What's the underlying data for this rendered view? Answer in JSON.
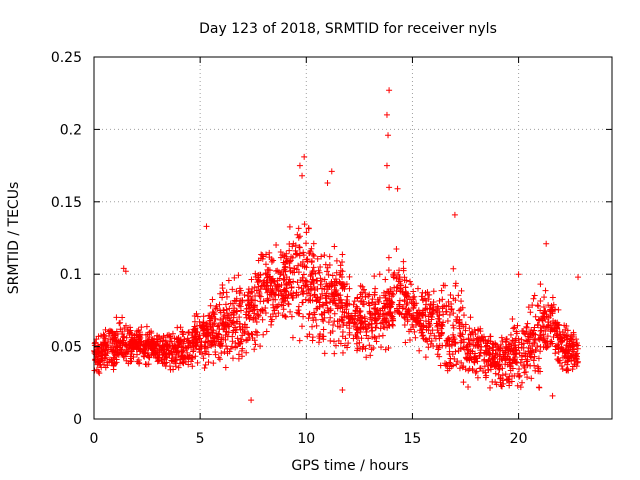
{
  "chart_data": {
    "type": "scatter",
    "title": "Day 123 of 2018, SRMTID for receiver nyls",
    "xlabel": "GPS time / hours",
    "ylabel": "SRMTID / TECUs",
    "xlim": [
      0,
      24.4
    ],
    "ylim": [
      0,
      0.25
    ],
    "xticks": [
      0,
      5,
      10,
      15,
      20
    ],
    "yticks": [
      0,
      0.05,
      0.1,
      0.15,
      0.2,
      0.25
    ],
    "xtick_labels": [
      "0",
      "5",
      "10",
      "15",
      "20"
    ],
    "ytick_labels": [
      "0",
      "0.05",
      "0.1",
      "0.15",
      "0.2",
      "0.25"
    ],
    "grid": true,
    "marker": "+",
    "color": "#ff0000",
    "series_profile": {
      "x": [
        0,
        1,
        2,
        3,
        4,
        5,
        6,
        7,
        8,
        9,
        9.8,
        10.5,
        11.5,
        12.5,
        13.5,
        14.2,
        15,
        16,
        17,
        18,
        19,
        20,
        21,
        21.5,
        22,
        22.8
      ],
      "typical": [
        0.045,
        0.05,
        0.053,
        0.048,
        0.047,
        0.055,
        0.065,
        0.068,
        0.09,
        0.095,
        0.1,
        0.085,
        0.08,
        0.068,
        0.07,
        0.09,
        0.075,
        0.065,
        0.055,
        0.048,
        0.04,
        0.045,
        0.06,
        0.07,
        0.05,
        0.045
      ],
      "upper": [
        0.07,
        0.08,
        0.078,
        0.07,
        0.072,
        0.09,
        0.11,
        0.125,
        0.14,
        0.14,
        0.18,
        0.14,
        0.15,
        0.11,
        0.12,
        0.14,
        0.12,
        0.1,
        0.13,
        0.08,
        0.075,
        0.09,
        0.12,
        0.11,
        0.085,
        0.07
      ]
    },
    "peaks": [
      {
        "x": 13.9,
        "y": 0.227
      },
      {
        "x": 13.8,
        "y": 0.21
      },
      {
        "x": 13.85,
        "y": 0.196
      },
      {
        "x": 9.9,
        "y": 0.181
      },
      {
        "x": 9.7,
        "y": 0.175
      },
      {
        "x": 13.8,
        "y": 0.175
      },
      {
        "x": 11.2,
        "y": 0.171
      },
      {
        "x": 9.8,
        "y": 0.168
      },
      {
        "x": 13.9,
        "y": 0.16
      },
      {
        "x": 14.3,
        "y": 0.159
      },
      {
        "x": 11.0,
        "y": 0.163
      },
      {
        "x": 5.3,
        "y": 0.133
      },
      {
        "x": 1.4,
        "y": 0.104
      },
      {
        "x": 1.5,
        "y": 0.102
      },
      {
        "x": 17.0,
        "y": 0.141
      },
      {
        "x": 21.3,
        "y": 0.121
      },
      {
        "x": 22.8,
        "y": 0.098
      },
      {
        "x": 20.0,
        "y": 0.1
      },
      {
        "x": 7.4,
        "y": 0.013
      },
      {
        "x": 11.7,
        "y": 0.02
      },
      {
        "x": 21.6,
        "y": 0.016
      }
    ]
  }
}
